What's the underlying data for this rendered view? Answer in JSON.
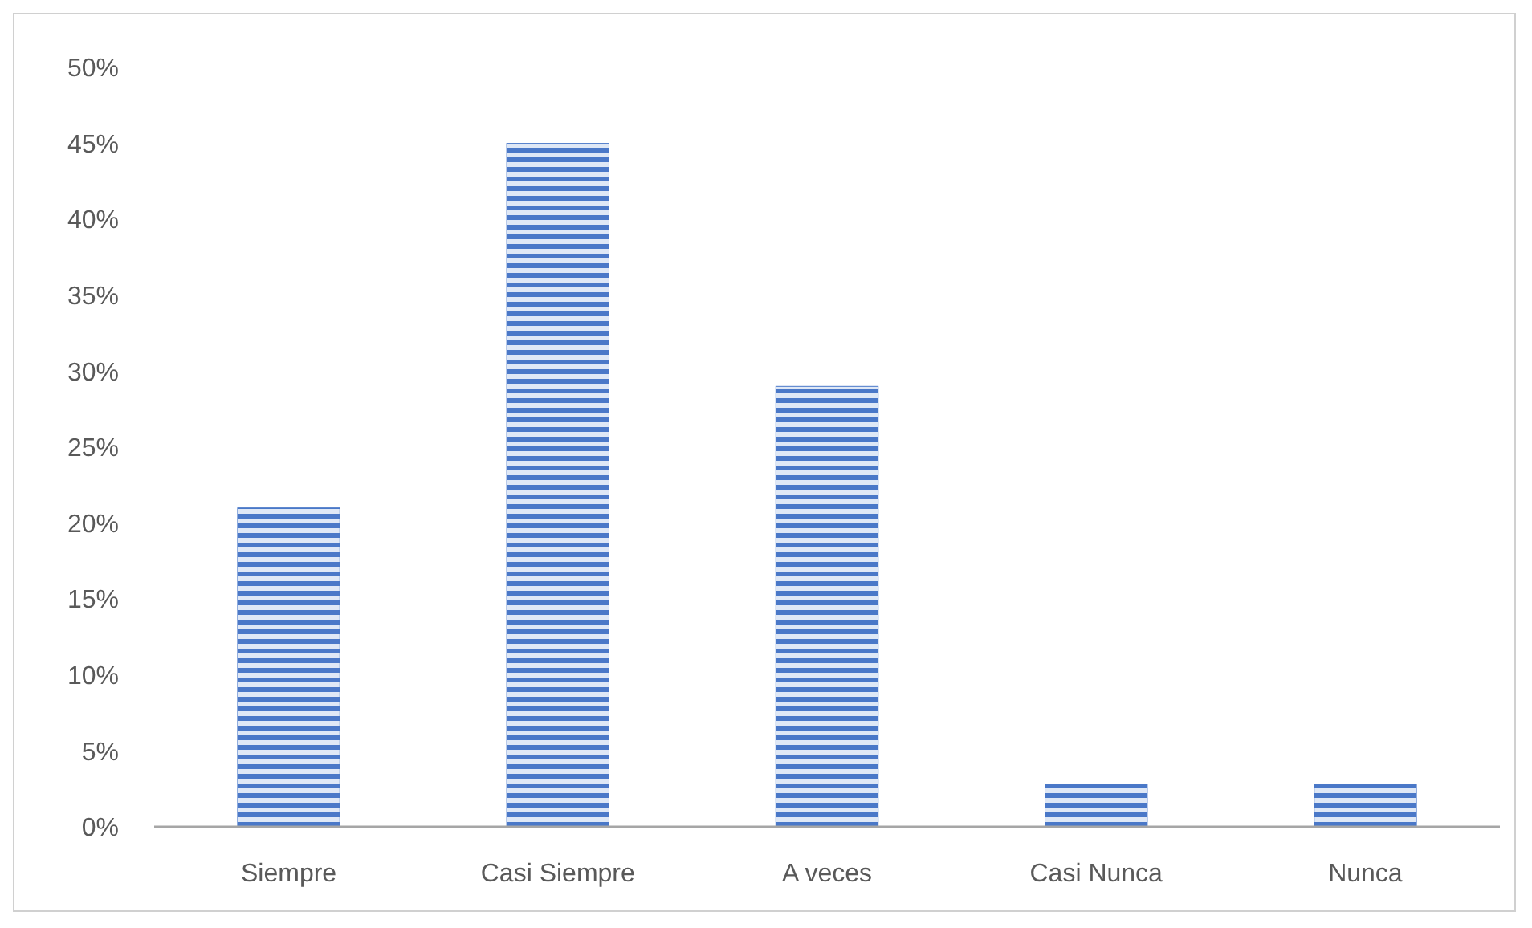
{
  "chart_data": {
    "type": "bar",
    "categories": [
      "Siempre",
      "Casi Siempre",
      "A veces",
      "Casi Nunca",
      "Nunca"
    ],
    "values": [
      21,
      45,
      29,
      2.8,
      2.8
    ],
    "color": "#4a78c8",
    "ylim": [
      0,
      50
    ],
    "yticks": [
      {
        "value": 0,
        "label": "0%"
      },
      {
        "value": 5,
        "label": "5%"
      },
      {
        "value": 10,
        "label": "10%"
      },
      {
        "value": 15,
        "label": "15%"
      },
      {
        "value": 20,
        "label": "20%"
      },
      {
        "value": 25,
        "label": "25%"
      },
      {
        "value": 30,
        "label": "30%"
      },
      {
        "value": 35,
        "label": "35%"
      },
      {
        "value": 40,
        "label": "40%"
      },
      {
        "value": 45,
        "label": "45%"
      },
      {
        "value": 50,
        "label": "50%"
      }
    ],
    "grid": false
  }
}
